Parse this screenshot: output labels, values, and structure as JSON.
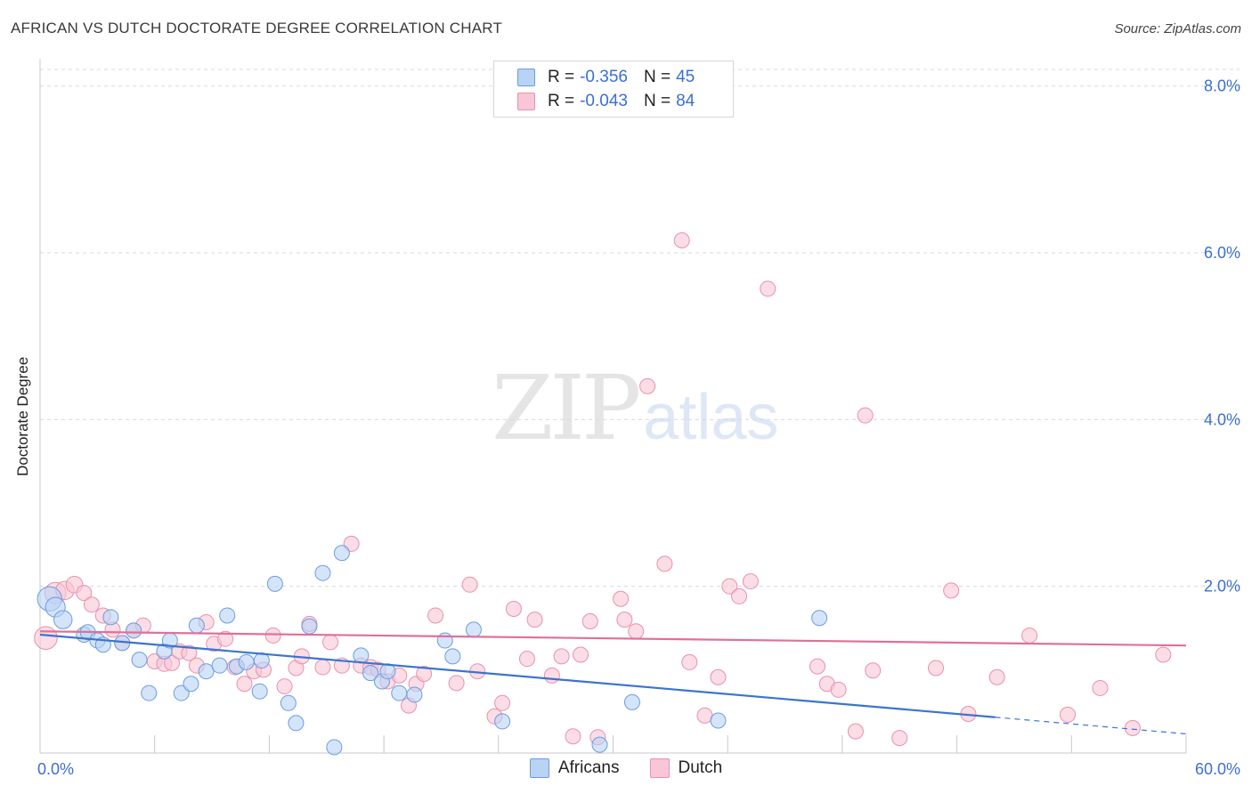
{
  "title": "AFRICAN VS DUTCH DOCTORATE DEGREE CORRELATION CHART",
  "source": "Source: ZipAtlas.com",
  "watermark": {
    "zip": "ZIP",
    "atlas": "atlas"
  },
  "legend": {
    "africans": {
      "r_label": "R = ",
      "r_value": "-0.356",
      "n_label": "N = ",
      "n_value": "45"
    },
    "dutch": {
      "r_label": "R = ",
      "r_value": "-0.043",
      "n_label": "N = ",
      "n_value": "84"
    }
  },
  "bottom_legend": {
    "africans": "Africans",
    "dutch": "Dutch"
  },
  "colors": {
    "africans_fill": "#b9d3f5",
    "africans_stroke": "#6b9be0",
    "africans_line": "#3a74cf",
    "dutch_fill": "#f8c6d6",
    "dutch_stroke": "#e990ae",
    "dutch_line": "#e0709a",
    "tick_label": "#3b6fd0",
    "grid": "#d9d9d9"
  },
  "chart_data": {
    "type": "scatter",
    "title": "AFRICAN VS DUTCH DOCTORATE DEGREE CORRELATION CHART",
    "xlabel": "",
    "ylabel": "Doctorate Degree",
    "xlim": [
      0,
      60
    ],
    "ylim": [
      0,
      8.2
    ],
    "x_tick_labels": [
      "0.0%",
      "60.0%"
    ],
    "y_ticks": [
      2,
      4,
      6,
      8
    ],
    "y_tick_labels": [
      "2.0%",
      "4.0%",
      "6.0%",
      "8.0%"
    ],
    "grid": true,
    "series": [
      {
        "name": "Africans",
        "r": -0.356,
        "n": 45,
        "trend": {
          "x0": 0,
          "y0": 1.42,
          "x1": 50,
          "y1": 0.43,
          "dash_to_x": 60,
          "dash_to_y": 0.23
        },
        "points": [
          [
            0.5,
            1.85,
            1.6
          ],
          [
            0.8,
            1.75,
            1.3
          ],
          [
            1.2,
            1.6,
            1.2
          ],
          [
            2.3,
            1.42,
            1
          ],
          [
            2.5,
            1.45,
            1
          ],
          [
            3.7,
            1.63,
            1
          ],
          [
            3.0,
            1.35,
            1
          ],
          [
            3.3,
            1.3,
            1
          ],
          [
            4.3,
            1.32,
            1
          ],
          [
            4.9,
            1.47,
            1
          ],
          [
            5.2,
            1.12,
            1
          ],
          [
            5.7,
            0.72,
            1
          ],
          [
            6.5,
            1.22,
            1
          ],
          [
            6.8,
            1.35,
            1
          ],
          [
            7.4,
            0.72,
            1
          ],
          [
            7.9,
            0.83,
            1
          ],
          [
            8.2,
            1.53,
            1
          ],
          [
            8.7,
            0.98,
            1
          ],
          [
            9.4,
            1.05,
            1
          ],
          [
            9.8,
            1.65,
            1
          ],
          [
            10.3,
            1.04,
            1
          ],
          [
            10.8,
            1.09,
            1
          ],
          [
            11.5,
            0.74,
            1
          ],
          [
            11.6,
            1.11,
            1
          ],
          [
            12.3,
            2.03,
            1
          ],
          [
            13.0,
            0.6,
            1
          ],
          [
            13.4,
            0.36,
            1
          ],
          [
            14.1,
            1.52,
            1
          ],
          [
            14.8,
            2.16,
            1
          ],
          [
            15.4,
            0.07,
            1
          ],
          [
            15.8,
            2.4,
            1
          ],
          [
            16.8,
            1.17,
            1
          ],
          [
            17.3,
            0.96,
            1
          ],
          [
            17.9,
            0.86,
            1
          ],
          [
            18.2,
            0.98,
            1
          ],
          [
            18.8,
            0.72,
            1
          ],
          [
            19.6,
            0.7,
            1
          ],
          [
            21.2,
            1.35,
            1
          ],
          [
            21.6,
            1.16,
            1
          ],
          [
            22.7,
            1.48,
            1
          ],
          [
            24.2,
            0.38,
            1
          ],
          [
            29.3,
            0.1,
            1
          ],
          [
            31.0,
            0.61,
            1
          ],
          [
            35.5,
            0.39,
            1
          ],
          [
            40.8,
            1.62,
            1
          ]
        ]
      },
      {
        "name": "Dutch",
        "r": -0.043,
        "n": 84,
        "trend": {
          "x0": 0,
          "y0": 1.46,
          "x1": 60,
          "y1": 1.29
        },
        "points": [
          [
            0.3,
            1.38,
            1.5
          ],
          [
            0.8,
            1.92,
            1.4
          ],
          [
            1.3,
            1.95,
            1.2
          ],
          [
            1.8,
            2.02,
            1.1
          ],
          [
            2.3,
            1.92,
            1
          ],
          [
            2.7,
            1.78,
            1
          ],
          [
            3.3,
            1.65,
            1
          ],
          [
            3.8,
            1.48,
            1
          ],
          [
            4.3,
            1.32,
            1
          ],
          [
            4.9,
            1.47,
            1
          ],
          [
            5.4,
            1.53,
            1
          ],
          [
            6.0,
            1.1,
            1
          ],
          [
            6.5,
            1.07,
            1
          ],
          [
            6.9,
            1.08,
            1
          ],
          [
            7.3,
            1.22,
            1
          ],
          [
            7.8,
            1.2,
            1
          ],
          [
            8.2,
            1.05,
            1
          ],
          [
            8.7,
            1.57,
            1
          ],
          [
            9.1,
            1.31,
            1
          ],
          [
            9.7,
            1.37,
            1
          ],
          [
            10.2,
            1.03,
            1
          ],
          [
            10.7,
            0.83,
            1
          ],
          [
            11.2,
            0.98,
            1
          ],
          [
            11.7,
            1.0,
            1
          ],
          [
            12.2,
            1.41,
            1
          ],
          [
            12.8,
            0.8,
            1
          ],
          [
            13.4,
            1.02,
            1
          ],
          [
            13.7,
            1.16,
            1
          ],
          [
            14.1,
            1.55,
            1
          ],
          [
            14.8,
            1.03,
            1
          ],
          [
            15.2,
            1.33,
            1
          ],
          [
            15.8,
            1.05,
            1
          ],
          [
            16.3,
            2.51,
            1
          ],
          [
            16.8,
            1.05,
            1
          ],
          [
            17.3,
            1.03,
            1
          ],
          [
            17.7,
            1.0,
            1
          ],
          [
            18.2,
            0.86,
            1
          ],
          [
            18.8,
            0.93,
            1
          ],
          [
            19.3,
            0.57,
            1
          ],
          [
            19.7,
            0.83,
            1
          ],
          [
            20.1,
            0.95,
            1
          ],
          [
            20.7,
            1.65,
            1
          ],
          [
            21.8,
            0.84,
            1
          ],
          [
            22.5,
            2.02,
            1
          ],
          [
            22.9,
            0.98,
            1
          ],
          [
            23.8,
            0.44,
            1
          ],
          [
            24.2,
            0.6,
            1
          ],
          [
            24.8,
            1.73,
            1
          ],
          [
            25.5,
            1.13,
            1
          ],
          [
            25.9,
            1.6,
            1
          ],
          [
            26.8,
            0.93,
            1
          ],
          [
            27.3,
            1.16,
            1
          ],
          [
            27.9,
            0.2,
            1
          ],
          [
            28.3,
            1.18,
            1
          ],
          [
            28.8,
            1.58,
            1
          ],
          [
            29.2,
            0.19,
            1
          ],
          [
            30.4,
            1.85,
            1
          ],
          [
            30.6,
            1.6,
            1
          ],
          [
            31.2,
            1.46,
            1
          ],
          [
            31.8,
            4.4,
            1
          ],
          [
            32.7,
            2.27,
            1
          ],
          [
            33.6,
            6.15,
            1
          ],
          [
            34.0,
            1.09,
            1
          ],
          [
            34.8,
            0.45,
            1
          ],
          [
            35.5,
            0.91,
            1
          ],
          [
            36.1,
            2.0,
            1
          ],
          [
            36.6,
            1.88,
            1
          ],
          [
            37.2,
            2.06,
            1
          ],
          [
            38.1,
            5.57,
            1
          ],
          [
            40.7,
            1.04,
            1
          ],
          [
            41.2,
            0.83,
            1
          ],
          [
            41.8,
            0.76,
            1
          ],
          [
            42.7,
            0.26,
            1
          ],
          [
            43.2,
            4.05,
            1
          ],
          [
            43.6,
            0.99,
            1
          ],
          [
            45.0,
            0.18,
            1
          ],
          [
            46.9,
            1.02,
            1
          ],
          [
            47.7,
            1.95,
            1
          ],
          [
            48.6,
            0.47,
            1
          ],
          [
            50.1,
            0.91,
            1
          ],
          [
            51.8,
            1.41,
            1
          ],
          [
            53.8,
            0.46,
            1
          ],
          [
            55.5,
            0.78,
            1
          ],
          [
            57.2,
            0.3,
            1
          ],
          [
            58.8,
            1.18,
            1
          ]
        ]
      }
    ]
  }
}
